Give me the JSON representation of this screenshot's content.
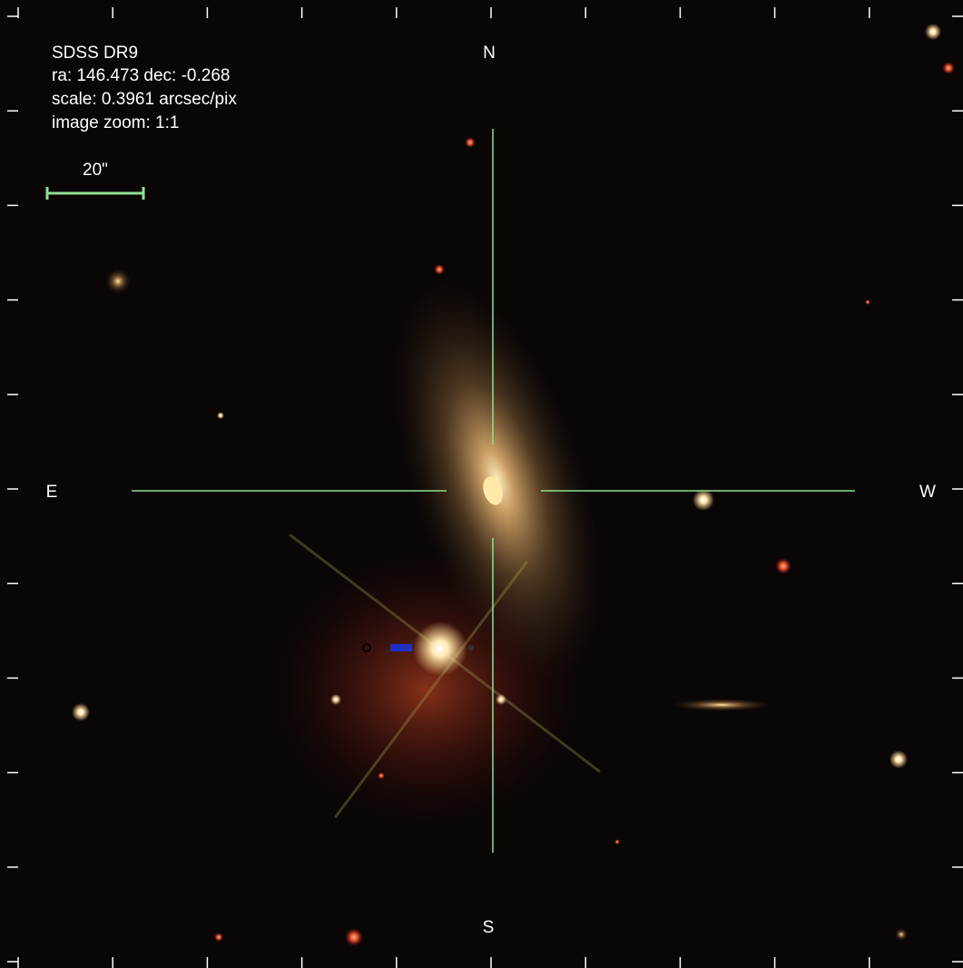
{
  "header": {
    "lines": [
      "SDSS DR9",
      "ra: 146.473 dec: -0.268",
      "scale: 0.3961 arcsec/pix",
      "image zoom: 1:1"
    ]
  },
  "scale_bar": {
    "label": "20\""
  },
  "compass": {
    "north": "N",
    "south": "S",
    "east": "E",
    "west": "W"
  }
}
